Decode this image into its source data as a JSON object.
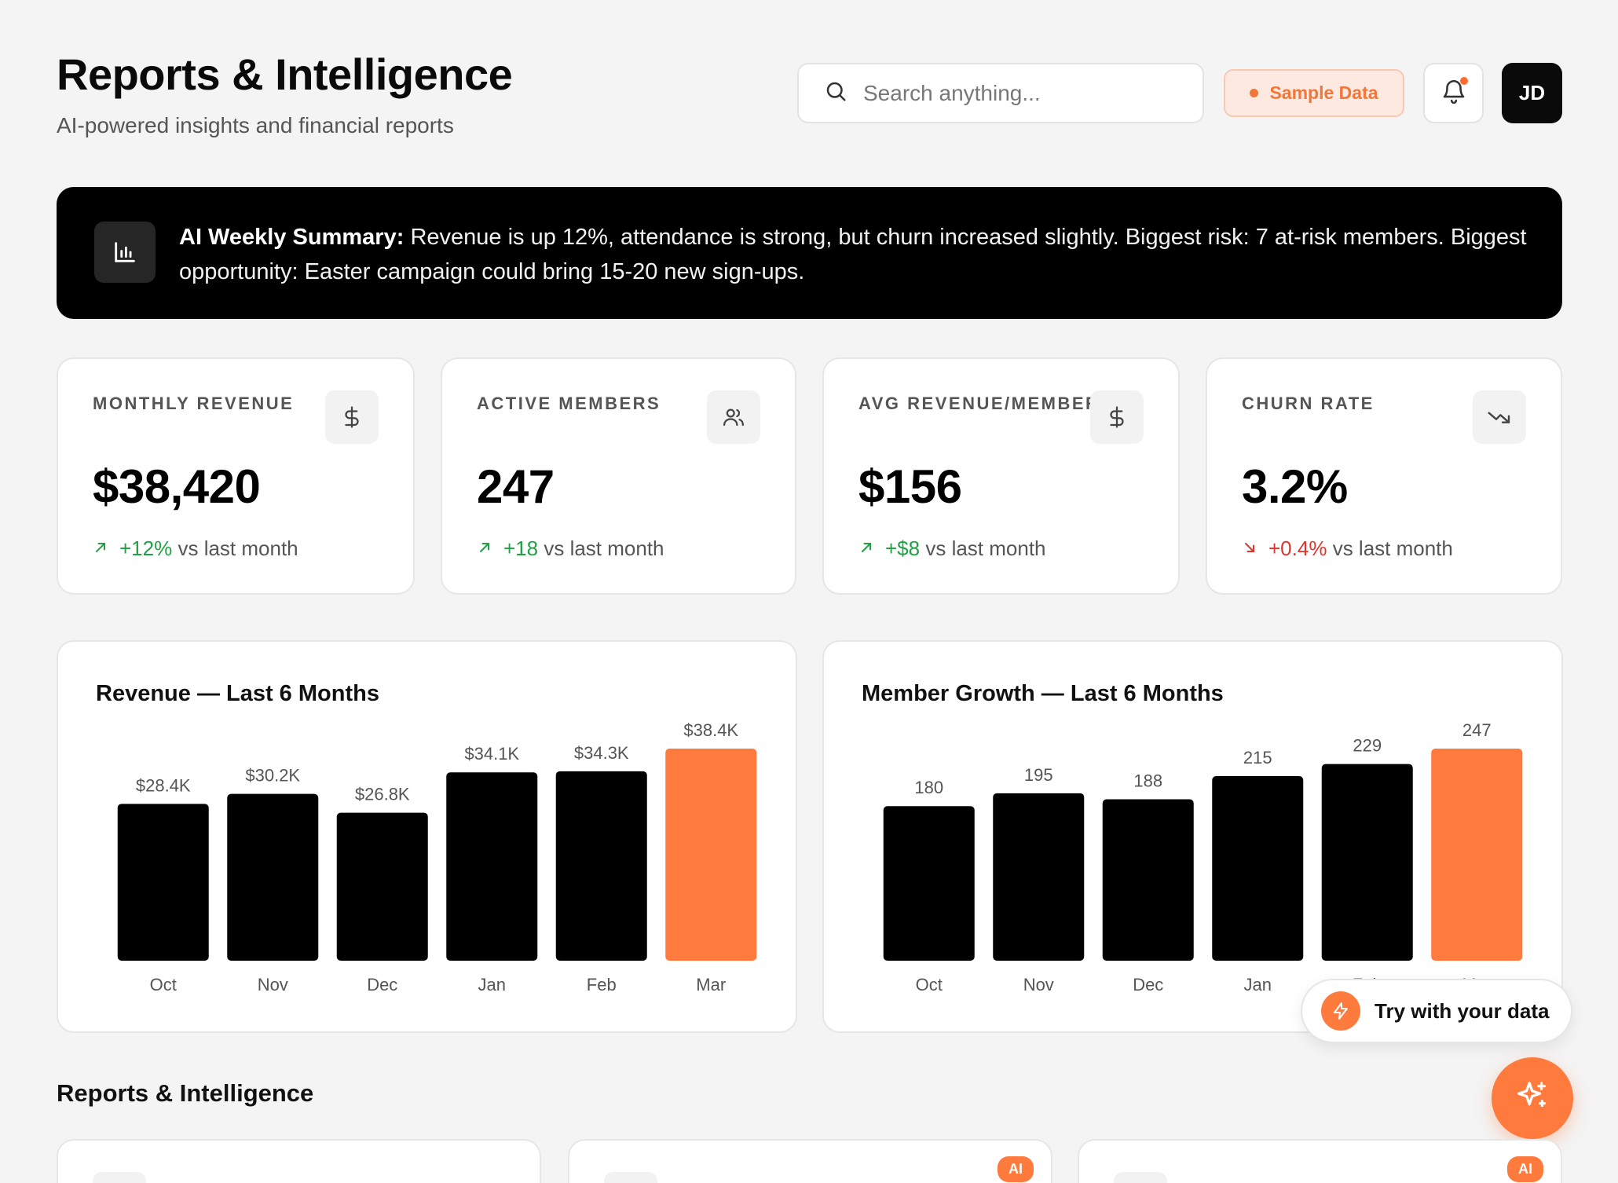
{
  "header": {
    "title": "Reports & Intelligence",
    "subtitle": "AI-powered insights and financial reports",
    "search_placeholder": "Search anything...",
    "sample_badge": "Sample Data",
    "avatar_initials": "JD"
  },
  "summary": {
    "label": "AI Weekly Summary:",
    "text": "Revenue is up 12%, attendance is strong, but churn increased slightly. Biggest risk: 7 at-risk members. Biggest opportunity: Easter campaign could bring 15-20 new sign-ups."
  },
  "kpis": [
    {
      "label": "MONTHLY REVENUE",
      "value": "$38,420",
      "delta": "+12%",
      "suffix": "vs last month",
      "trend": "up",
      "icon": "dollar-icon"
    },
    {
      "label": "ACTIVE MEMBERS",
      "value": "247",
      "delta": "+18",
      "suffix": "vs last month",
      "trend": "up",
      "icon": "users-icon"
    },
    {
      "label": "AVG REVENUE/MEMBER",
      "value": "$156",
      "delta": "+$8",
      "suffix": "vs last month",
      "trend": "up",
      "icon": "dollar-icon"
    },
    {
      "label": "CHURN RATE",
      "value": "3.2%",
      "delta": "+0.4%",
      "suffix": "vs last month",
      "trend": "down",
      "icon": "trending-down-icon"
    }
  ],
  "colors": {
    "accent": "#ff7a3d",
    "bar": "#000000",
    "up": "#22a045",
    "down": "#e2342c"
  },
  "chart_data": [
    {
      "type": "bar",
      "title": "Revenue — Last 6 Months",
      "categories": [
        "Oct",
        "Nov",
        "Dec",
        "Jan",
        "Feb",
        "Mar"
      ],
      "values": [
        28.4,
        30.2,
        26.8,
        34.1,
        34.3,
        38.4
      ],
      "data_labels": [
        "$28.4K",
        "$30.2K",
        "$26.8K",
        "$34.1K",
        "$34.3K",
        "$38.4K"
      ],
      "highlight_index": 5,
      "ylim": [
        0,
        38.4
      ]
    },
    {
      "type": "bar",
      "title": "Member Growth — Last 6 Months",
      "categories": [
        "Oct",
        "Nov",
        "Dec",
        "Jan",
        "Feb",
        "Mar"
      ],
      "values": [
        180,
        195,
        188,
        215,
        229,
        247
      ],
      "data_labels": [
        "180",
        "195",
        "188",
        "215",
        "229",
        "247"
      ],
      "highlight_index": 5,
      "ylim": [
        0,
        247
      ]
    }
  ],
  "floating": {
    "try_label": "Try with your data"
  },
  "reports_section": {
    "title": "Reports & Intelligence",
    "cards": [
      {
        "ai_badge": ""
      },
      {
        "ai_badge": "AI"
      },
      {
        "ai_badge": "AI"
      }
    ]
  }
}
